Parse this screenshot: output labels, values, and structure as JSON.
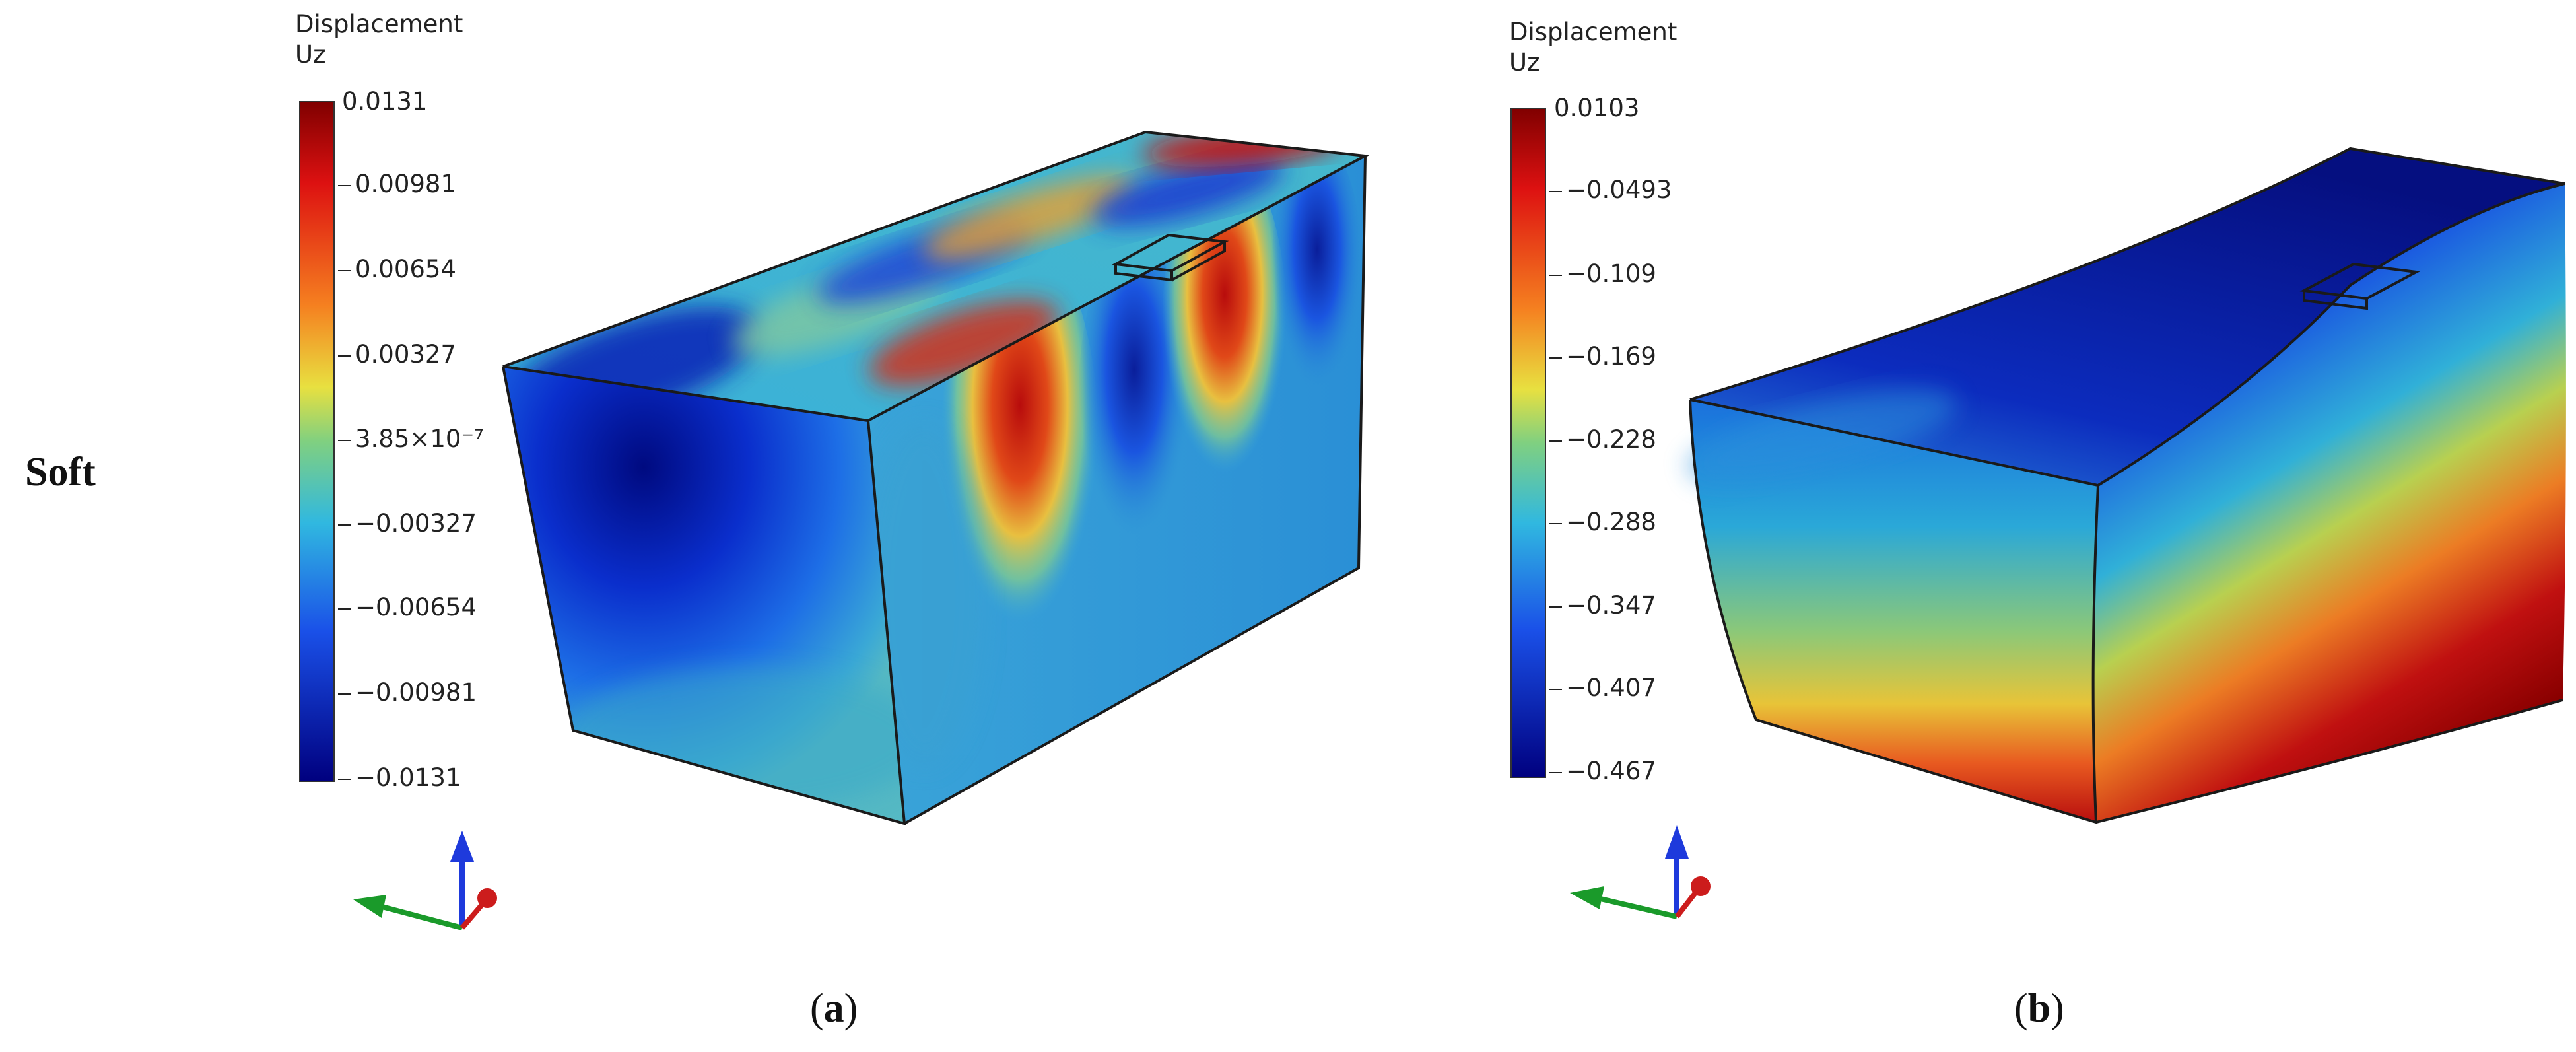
{
  "row_label": "Soft",
  "panels": [
    {
      "id": "a",
      "caption_open": "(",
      "caption_letter": "a",
      "caption_close": ")",
      "legend": {
        "title": "Displacement\nUz",
        "ticks": [
          "0.0131",
          "0.00981",
          "0.00654",
          "0.00327",
          "3.85×10⁻⁷",
          "−0.00327",
          "−0.00654",
          "−0.00981",
          "−0.0131"
        ]
      }
    },
    {
      "id": "b",
      "caption_open": "(",
      "caption_letter": "b",
      "caption_close": ")",
      "legend": {
        "title": "Displacement\nUz",
        "ticks": [
          "0.0103",
          "−0.0493",
          "−0.109",
          "−0.169",
          "−0.228",
          "−0.288",
          "−0.347",
          "−0.407",
          "−0.467"
        ]
      }
    }
  ],
  "colors": {
    "jet_dark_blue": "#00007f",
    "jet_blue": "#1e40e0",
    "jet_cyan": "#2fb8d8",
    "jet_green": "#7fd080",
    "jet_yellow": "#e8d040",
    "jet_orange": "#f07828",
    "jet_red": "#cc1010",
    "jet_dark_red": "#800000",
    "axis_z": "#1e3adc",
    "axis_y": "#1a9a2a",
    "axis_x": "#cc1c1c"
  }
}
